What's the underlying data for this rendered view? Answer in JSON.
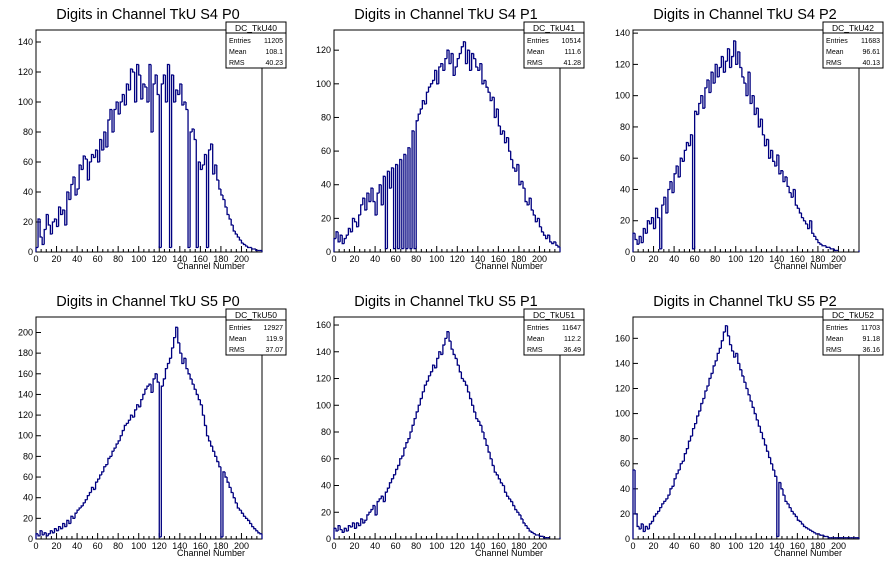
{
  "chart_data": [
    {
      "type": "histogram",
      "title": "Digits in Channel TkU S4 P0",
      "xlabel": "Channel Number",
      "ylabel": "",
      "xlim": [
        0,
        220
      ],
      "ylim": [
        0,
        148
      ],
      "xticks": [
        0,
        20,
        40,
        60,
        80,
        100,
        120,
        140,
        160,
        180,
        200
      ],
      "yticks": [
        0,
        20,
        40,
        60,
        80,
        100,
        120,
        140
      ],
      "stats": {
        "name": "DC_TkU40",
        "entries": "11205",
        "mean": "108.1",
        "rms": "40.23"
      },
      "series": [
        {
          "x_start": 0,
          "bin_width": 2,
          "color": "#000080",
          "values": [
            3,
            22,
            10,
            5,
            15,
            25,
            18,
            12,
            20,
            22,
            17,
            30,
            25,
            28,
            18,
            40,
            35,
            45,
            50,
            38,
            42,
            58,
            55,
            64,
            62,
            48,
            60,
            65,
            63,
            68,
            60,
            75,
            68,
            80,
            70,
            88,
            95,
            80,
            95,
            100,
            92,
            100,
            105,
            98,
            112,
            108,
            122,
            120,
            100,
            125,
            118,
            102,
            112,
            110,
            100,
            125,
            80,
            112,
            118,
            105,
            3,
            112,
            118,
            100,
            125,
            3,
            118,
            100,
            108,
            105,
            112,
            98,
            100,
            95,
            3,
            80,
            82,
            75,
            3,
            60,
            55,
            58,
            65,
            3,
            68,
            72,
            52,
            58,
            48,
            42,
            38,
            35,
            30,
            25,
            22,
            18,
            14,
            12,
            10,
            8,
            6,
            5,
            4,
            3,
            3,
            2,
            2,
            1,
            1,
            1
          ]
        }
      ]
    },
    {
      "type": "histogram",
      "title": "Digits in Channel TkU S4 P1",
      "xlabel": "Channel Number",
      "ylabel": "",
      "xlim": [
        0,
        220
      ],
      "ylim": [
        0,
        132
      ],
      "xticks": [
        0,
        20,
        40,
        60,
        80,
        100,
        120,
        140,
        160,
        180,
        200
      ],
      "yticks": [
        0,
        20,
        40,
        60,
        80,
        100,
        120
      ],
      "stats": {
        "name": "DC_TkU41",
        "entries": "10514",
        "mean": "111.6",
        "rms": "41.28"
      },
      "series": [
        {
          "x_start": 0,
          "bin_width": 2,
          "color": "#000080",
          "values": [
            8,
            12,
            6,
            10,
            5,
            8,
            10,
            14,
            12,
            20,
            18,
            15,
            22,
            28,
            32,
            25,
            35,
            30,
            38,
            30,
            22,
            35,
            40,
            28,
            45,
            2,
            48,
            38,
            50,
            2,
            52,
            2,
            55,
            2,
            58,
            2,
            62,
            2,
            72,
            2,
            78,
            82,
            85,
            90,
            88,
            95,
            98,
            100,
            102,
            108,
            100,
            110,
            112,
            108,
            115,
            120,
            112,
            118,
            105,
            110,
            115,
            118,
            122,
            125,
            112,
            120,
            108,
            118,
            115,
            110,
            108,
            112,
            100,
            102,
            98,
            95,
            90,
            92,
            80,
            85,
            75,
            70,
            72,
            65,
            68,
            60,
            55,
            50,
            48,
            52,
            40,
            42,
            38,
            30,
            28,
            32,
            25,
            22,
            18,
            20,
            15,
            12,
            10,
            8,
            10,
            6,
            5,
            6,
            4,
            3
          ]
        }
      ]
    },
    {
      "type": "histogram",
      "title": "Digits in Channel TkU S4 P2",
      "xlabel": "Channel Number",
      "ylabel": "",
      "xlim": [
        0,
        220
      ],
      "ylim": [
        0,
        142
      ],
      "xticks": [
        0,
        20,
        40,
        60,
        80,
        100,
        120,
        140,
        160,
        180,
        200
      ],
      "yticks": [
        0,
        20,
        40,
        60,
        80,
        100,
        120,
        140
      ],
      "stats": {
        "name": "DC_TkU42",
        "entries": "11683",
        "mean": "96.61",
        "rms": "40.13"
      },
      "series": [
        {
          "x_start": 0,
          "bin_width": 2,
          "color": "#000080",
          "values": [
            12,
            8,
            5,
            10,
            6,
            15,
            12,
            20,
            18,
            22,
            15,
            28,
            22,
            2,
            30,
            35,
            25,
            40,
            45,
            38,
            50,
            55,
            48,
            60,
            58,
            65,
            70,
            68,
            75,
            2,
            90,
            88,
            95,
            100,
            92,
            105,
            110,
            102,
            115,
            108,
            120,
            112,
            118,
            125,
            115,
            122,
            130,
            118,
            125,
            135,
            120,
            128,
            118,
            112,
            108,
            100,
            115,
            95,
            100,
            88,
            92,
            80,
            85,
            75,
            68,
            72,
            60,
            65,
            58,
            55,
            62,
            50,
            52,
            45,
            48,
            42,
            38,
            35,
            40,
            30,
            28,
            25,
            22,
            20,
            18,
            15,
            20,
            12,
            10,
            8,
            6,
            5,
            4,
            4,
            3,
            3,
            2,
            2,
            1,
            1
          ]
        }
      ]
    },
    {
      "type": "histogram",
      "title": "Digits in Channel TkU S5 P0",
      "xlabel": "Channel Number",
      "ylabel": "",
      "xlim": [
        0,
        220
      ],
      "ylim": [
        0,
        215
      ],
      "xticks": [
        0,
        20,
        40,
        60,
        80,
        100,
        120,
        140,
        160,
        180,
        200
      ],
      "yticks": [
        0,
        20,
        40,
        60,
        80,
        100,
        120,
        140,
        160,
        180,
        200
      ],
      "stats": {
        "name": "DC_TkU50",
        "entries": "12927",
        "mean": "119.9",
        "rms": "37.07"
      },
      "series": [
        {
          "x_start": 0,
          "bin_width": 2,
          "color": "#000080",
          "values": [
            5,
            3,
            8,
            4,
            6,
            3,
            5,
            8,
            6,
            10,
            8,
            12,
            10,
            15,
            12,
            18,
            15,
            22,
            20,
            25,
            28,
            30,
            32,
            35,
            38,
            42,
            45,
            50,
            48,
            55,
            58,
            62,
            65,
            70,
            72,
            78,
            80,
            85,
            88,
            92,
            95,
            100,
            105,
            110,
            112,
            115,
            120,
            118,
            125,
            130,
            128,
            135,
            140,
            145,
            148,
            150,
            142,
            155,
            160,
            152,
            2,
            148,
            155,
            165,
            170,
            175,
            185,
            195,
            205,
            190,
            180,
            170,
            175,
            165,
            160,
            155,
            150,
            145,
            140,
            135,
            130,
            120,
            110,
            100,
            95,
            90,
            85,
            80,
            75,
            70,
            2,
            65,
            60,
            55,
            50,
            45,
            40,
            35,
            30,
            28,
            25,
            22,
            20,
            18,
            15,
            12,
            10,
            8,
            6,
            5,
            4,
            3,
            3,
            2,
            2,
            1
          ]
        }
      ]
    },
    {
      "type": "histogram",
      "title": "Digits in Channel TkU S5 P1",
      "xlabel": "Channel Number",
      "ylabel": "",
      "xlim": [
        0,
        220
      ],
      "ylim": [
        0,
        166
      ],
      "xticks": [
        0,
        20,
        40,
        60,
        80,
        100,
        120,
        140,
        160,
        180,
        200
      ],
      "yticks": [
        0,
        20,
        40,
        60,
        80,
        100,
        120,
        140,
        160
      ],
      "stats": {
        "name": "DC_TkU51",
        "entries": "11647",
        "mean": "112.2",
        "rms": "36.49"
      },
      "series": [
        {
          "x_start": 0,
          "bin_width": 2,
          "color": "#000080",
          "values": [
            8,
            6,
            10,
            7,
            5,
            8,
            6,
            10,
            9,
            12,
            8,
            12,
            10,
            15,
            12,
            14,
            18,
            20,
            22,
            25,
            18,
            28,
            30,
            32,
            28,
            35,
            38,
            42,
            45,
            48,
            52,
            55,
            60,
            62,
            68,
            72,
            75,
            80,
            85,
            90,
            95,
            100,
            105,
            110,
            115,
            118,
            122,
            125,
            130,
            128,
            135,
            140,
            138,
            145,
            150,
            155,
            148,
            142,
            138,
            135,
            130,
            125,
            120,
            118,
            115,
            110,
            105,
            100,
            95,
            90,
            88,
            85,
            80,
            75,
            70,
            65,
            60,
            55,
            50,
            48,
            45,
            42,
            40,
            35,
            32,
            30,
            28,
            25,
            22,
            20,
            18,
            15,
            12,
            10,
            8,
            6,
            5,
            4,
            3,
            3,
            2,
            2,
            1,
            1,
            1
          ]
        }
      ]
    },
    {
      "type": "histogram",
      "title": "Digits in Channel TkU S5 P2",
      "xlabel": "Channel Number",
      "ylabel": "",
      "xlim": [
        0,
        220
      ],
      "ylim": [
        0,
        177
      ],
      "xticks": [
        0,
        20,
        40,
        60,
        80,
        100,
        120,
        140,
        160,
        180,
        200
      ],
      "yticks": [
        0,
        20,
        40,
        60,
        80,
        100,
        120,
        140,
        160
      ],
      "stats": {
        "name": "DC_TkU52",
        "entries": "11703",
        "mean": "91.18",
        "rms": "36.16"
      },
      "series": [
        {
          "x_start": 0,
          "bin_width": 2,
          "color": "#000080",
          "values": [
            55,
            20,
            10,
            8,
            12,
            6,
            10,
            8,
            12,
            14,
            18,
            20,
            22,
            25,
            28,
            30,
            32,
            35,
            40,
            42,
            48,
            52,
            55,
            60,
            62,
            68,
            72,
            78,
            82,
            88,
            92,
            98,
            102,
            108,
            112,
            118,
            122,
            128,
            132,
            138,
            142,
            148,
            152,
            158,
            165,
            170,
            162,
            155,
            150,
            145,
            148,
            140,
            135,
            130,
            125,
            120,
            115,
            110,
            105,
            100,
            95,
            90,
            85,
            80,
            75,
            70,
            65,
            60,
            55,
            50,
            2,
            45,
            40,
            35,
            30,
            28,
            25,
            22,
            20,
            18,
            15,
            14,
            12,
            10,
            9,
            8,
            7,
            6,
            5,
            4,
            4,
            3,
            3,
            2,
            2,
            1,
            1,
            1,
            1,
            1,
            1,
            1,
            1,
            1,
            1,
            1,
            1,
            1,
            1,
            1
          ]
        }
      ]
    }
  ]
}
